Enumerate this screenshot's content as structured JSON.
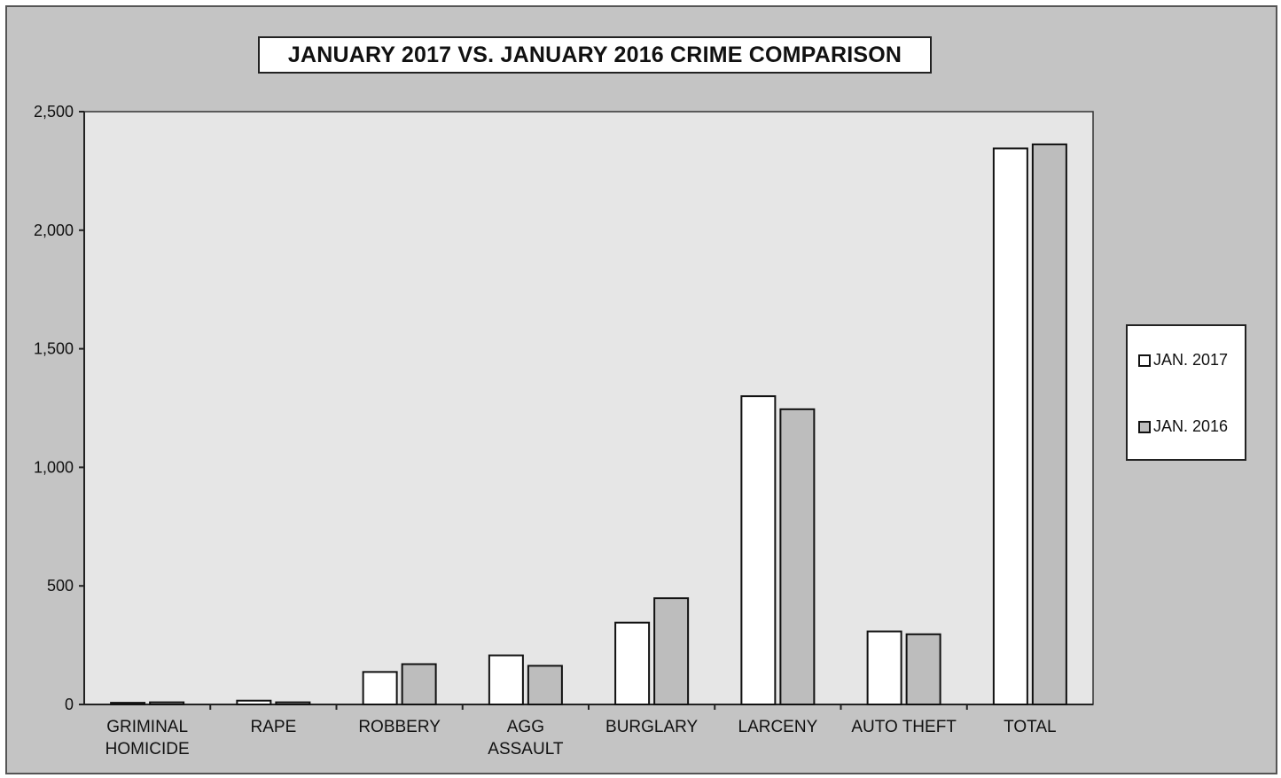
{
  "chart_data": {
    "type": "bar",
    "title": "JANUARY 2017  VS. JANUARY 2016 CRIME COMPARISON",
    "xlabel": "",
    "ylabel": "",
    "ylim": [
      0,
      2500
    ],
    "yticks": [
      0,
      500,
      1000,
      1500,
      2000,
      2500
    ],
    "ytick_labels": [
      "0",
      "500",
      "1,000",
      "1,500",
      "2,000",
      "2,500"
    ],
    "categories": [
      [
        "GRIMINAL",
        "HOMICIDE"
      ],
      [
        "RAPE"
      ],
      [
        "ROBBERY"
      ],
      [
        "AGG",
        "ASSAULT"
      ],
      [
        "BURGLARY"
      ],
      [
        "LARCENY"
      ],
      [
        "AUTO THEFT"
      ],
      [
        "TOTAL"
      ]
    ],
    "series": [
      {
        "name": "JAN. 2017",
        "color": "#ffffff",
        "values": [
          7,
          16,
          137,
          207,
          345,
          1300,
          308,
          2345
        ]
      },
      {
        "name": "JAN. 2016",
        "color": "#bdbdbd",
        "values": [
          9,
          9,
          170,
          163,
          448,
          1245,
          296,
          2362
        ]
      }
    ],
    "grid": false,
    "legend_position": "right"
  }
}
